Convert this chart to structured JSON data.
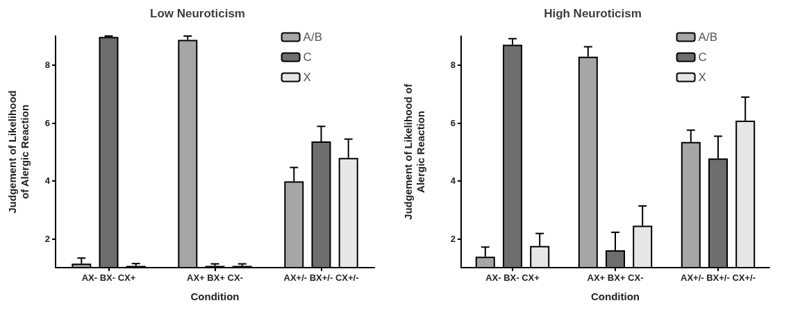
{
  "chart_data": [
    {
      "type": "bar",
      "title": "Low Neuroticism",
      "xlabel": "Condition",
      "ylabel": "Judgement of Likelihood\nof Alergic Reaction",
      "categories": [
        "AX- BX- CX+",
        "AX+ BX+ CX-",
        "AX+/- BX+/- CX+/-"
      ],
      "series": [
        {
          "name": "A/B",
          "color": "#a6a6a6",
          "values": [
            1.14,
            8.87,
            3.98
          ],
          "errors": [
            [
              1.14,
              1.33
            ],
            [
              8.87,
              9.0
            ],
            [
              3.98,
              4.46
            ]
          ]
        },
        {
          "name": "C",
          "color": "#6e6e6e",
          "values": [
            8.97,
            1.06,
            5.36
          ],
          "errors": [
            [
              8.97,
              9.0
            ],
            [
              1.06,
              1.13
            ],
            [
              5.36,
              5.88
            ]
          ]
        },
        {
          "name": "X",
          "color": "#e6e6e6",
          "values": [
            1.06,
            1.06,
            4.79
          ],
          "errors": [
            [
              1.06,
              1.14
            ],
            [
              1.06,
              1.13
            ],
            [
              4.79,
              5.44
            ]
          ]
        }
      ],
      "ylim": [
        1,
        9
      ],
      "yticks": [
        2,
        4,
        6,
        8
      ],
      "grid": false,
      "legend": "top right"
    },
    {
      "type": "bar",
      "title": "High Neuroticism",
      "xlabel": "Condition",
      "ylabel": "Judgement of Likelihood of\nAlergic Reaction",
      "categories": [
        "AX- BX- CX+",
        "AX+ BX+ CX-",
        "AX+/- BX+/- CX+/-"
      ],
      "series": [
        {
          "name": "A/B",
          "color": "#a6a6a6",
          "values": [
            1.38,
            8.29,
            5.34
          ],
          "errors": [
            [
              1.38,
              1.71
            ],
            [
              8.29,
              8.63
            ],
            [
              5.34,
              5.75
            ]
          ]
        },
        {
          "name": "C",
          "color": "#6e6e6e",
          "values": [
            8.7,
            1.6,
            4.77
          ],
          "errors": [
            [
              8.7,
              8.91
            ],
            [
              1.6,
              2.22
            ],
            [
              4.77,
              5.54
            ]
          ]
        },
        {
          "name": "X",
          "color": "#e6e6e6",
          "values": [
            1.75,
            2.45,
            6.08
          ],
          "errors": [
            [
              1.75,
              2.18
            ],
            [
              2.45,
              3.13
            ],
            [
              6.08,
              6.89
            ]
          ]
        }
      ],
      "ylim": [
        1,
        9
      ],
      "yticks": [
        2,
        4,
        6,
        8
      ],
      "grid": false,
      "legend": "top right"
    }
  ]
}
